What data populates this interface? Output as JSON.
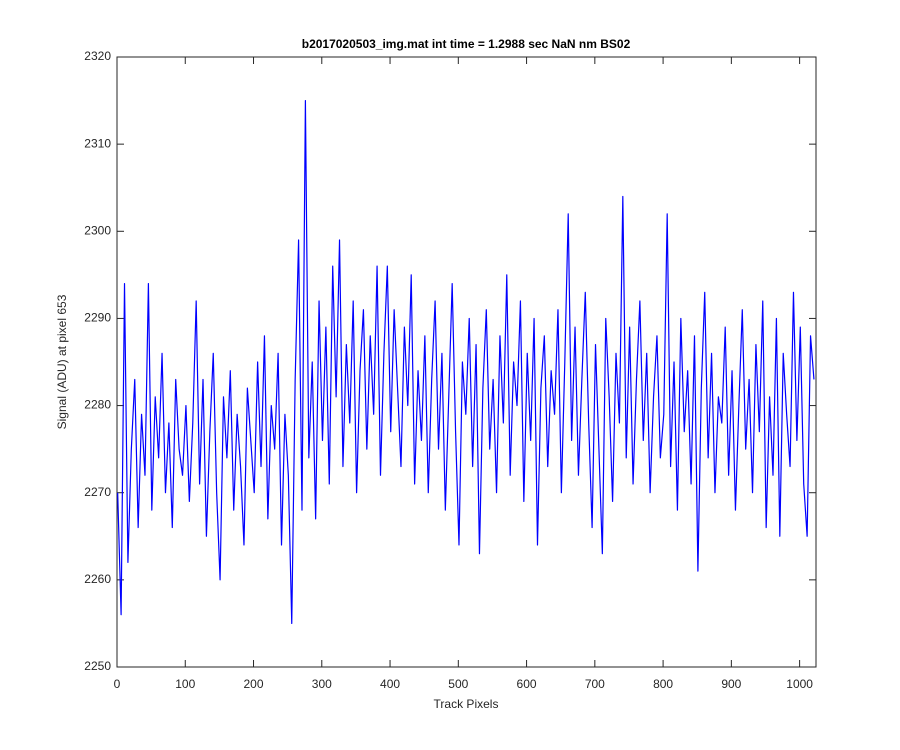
{
  "chart_data": {
    "type": "line",
    "title": "b2017020503_img.mat int time = 1.2988 sec  NaN nm BS02",
    "x_label": "Track Pixels",
    "y_label": "Signal (ADU) at pixel 653",
    "xlim": [
      0,
      1024
    ],
    "ylim": [
      2250,
      2320
    ],
    "xticks": [
      0,
      100,
      200,
      300,
      400,
      500,
      600,
      700,
      800,
      900,
      1000
    ],
    "yticks": [
      2250,
      2260,
      2270,
      2280,
      2290,
      2300,
      2310,
      2320
    ],
    "grid": false,
    "x": [
      1,
      6,
      11,
      16,
      21,
      26,
      31,
      36,
      41,
      46,
      51,
      56,
      61,
      66,
      71,
      76,
      81,
      86,
      91,
      96,
      101,
      106,
      111,
      116,
      121,
      126,
      131,
      136,
      141,
      146,
      151,
      156,
      161,
      166,
      171,
      176,
      181,
      186,
      191,
      196,
      201,
      206,
      211,
      216,
      221,
      226,
      231,
      236,
      241,
      246,
      251,
      256,
      261,
      266,
      271,
      276,
      281,
      286,
      291,
      296,
      301,
      306,
      311,
      316,
      321,
      326,
      331,
      336,
      341,
      346,
      351,
      356,
      361,
      366,
      371,
      376,
      381,
      386,
      391,
      396,
      401,
      406,
      411,
      416,
      421,
      426,
      431,
      436,
      441,
      446,
      451,
      456,
      461,
      466,
      471,
      476,
      481,
      486,
      491,
      496,
      501,
      506,
      511,
      516,
      521,
      526,
      531,
      536,
      541,
      546,
      551,
      556,
      561,
      566,
      571,
      576,
      581,
      586,
      591,
      596,
      601,
      606,
      611,
      616,
      621,
      626,
      631,
      636,
      641,
      646,
      651,
      656,
      661,
      666,
      671,
      676,
      681,
      686,
      691,
      696,
      701,
      706,
      711,
      716,
      721,
      726,
      731,
      736,
      741,
      746,
      751,
      756,
      761,
      766,
      771,
      776,
      781,
      786,
      791,
      796,
      801,
      806,
      811,
      816,
      821,
      826,
      831,
      836,
      841,
      846,
      851,
      856,
      861,
      866,
      871,
      876,
      881,
      886,
      891,
      896,
      901,
      906,
      911,
      916,
      921,
      926,
      931,
      936,
      941,
      946,
      951,
      956,
      961,
      966,
      971,
      976,
      981,
      986,
      991,
      996,
      1001,
      1006,
      1011,
      1016,
      1021
    ],
    "series": [
      {
        "color": "#0000ff",
        "values": [
          2270,
          2256,
          2294,
          2262,
          2275,
          2283,
          2266,
          2279,
          2272,
          2294,
          2268,
          2281,
          2274,
          2286,
          2270,
          2278,
          2266,
          2283,
          2275,
          2272,
          2280,
          2269,
          2278,
          2292,
          2271,
          2283,
          2265,
          2277,
          2286,
          2270,
          2260,
          2281,
          2274,
          2284,
          2268,
          2279,
          2273,
          2264,
          2282,
          2276,
          2270,
          2285,
          2273,
          2288,
          2267,
          2280,
          2275,
          2286,
          2264,
          2279,
          2272,
          2255,
          2283,
          2299,
          2268,
          2315,
          2274,
          2285,
          2267,
          2292,
          2276,
          2289,
          2271,
          2296,
          2281,
          2299,
          2273,
          2287,
          2278,
          2292,
          2270,
          2284,
          2291,
          2275,
          2288,
          2279,
          2296,
          2272,
          2286,
          2296,
          2277,
          2291,
          2282,
          2273,
          2289,
          2280,
          2295,
          2271,
          2284,
          2276,
          2288,
          2270,
          2283,
          2292,
          2275,
          2286,
          2268,
          2281,
          2294,
          2277,
          2264,
          2285,
          2279,
          2290,
          2273,
          2287,
          2263,
          2282,
          2291,
          2275,
          2283,
          2270,
          2288,
          2278,
          2295,
          2272,
          2285,
          2280,
          2292,
          2269,
          2286,
          2276,
          2290,
          2264,
          2282,
          2288,
          2273,
          2284,
          2279,
          2291,
          2270,
          2285,
          2302,
          2276,
          2289,
          2272,
          2283,
          2293,
          2278,
          2266,
          2287,
          2275,
          2263,
          2290,
          2281,
          2269,
          2286,
          2278,
          2304,
          2274,
          2289,
          2271,
          2283,
          2292,
          2276,
          2286,
          2270,
          2281,
          2288,
          2274,
          2279,
          2302,
          2273,
          2285,
          2268,
          2290,
          2277,
          2284,
          2271,
          2288,
          2261,
          2282,
          2293,
          2274,
          2286,
          2270,
          2281,
          2278,
          2289,
          2272,
          2284,
          2268,
          2280,
          2291,
          2275,
          2283,
          2270,
          2287,
          2277,
          2292,
          2266,
          2281,
          2272,
          2290,
          2265,
          2286,
          2279,
          2273,
          2293,
          2276,
          2289,
          2271,
          2265,
          2288,
          2283
        ]
      }
    ]
  }
}
